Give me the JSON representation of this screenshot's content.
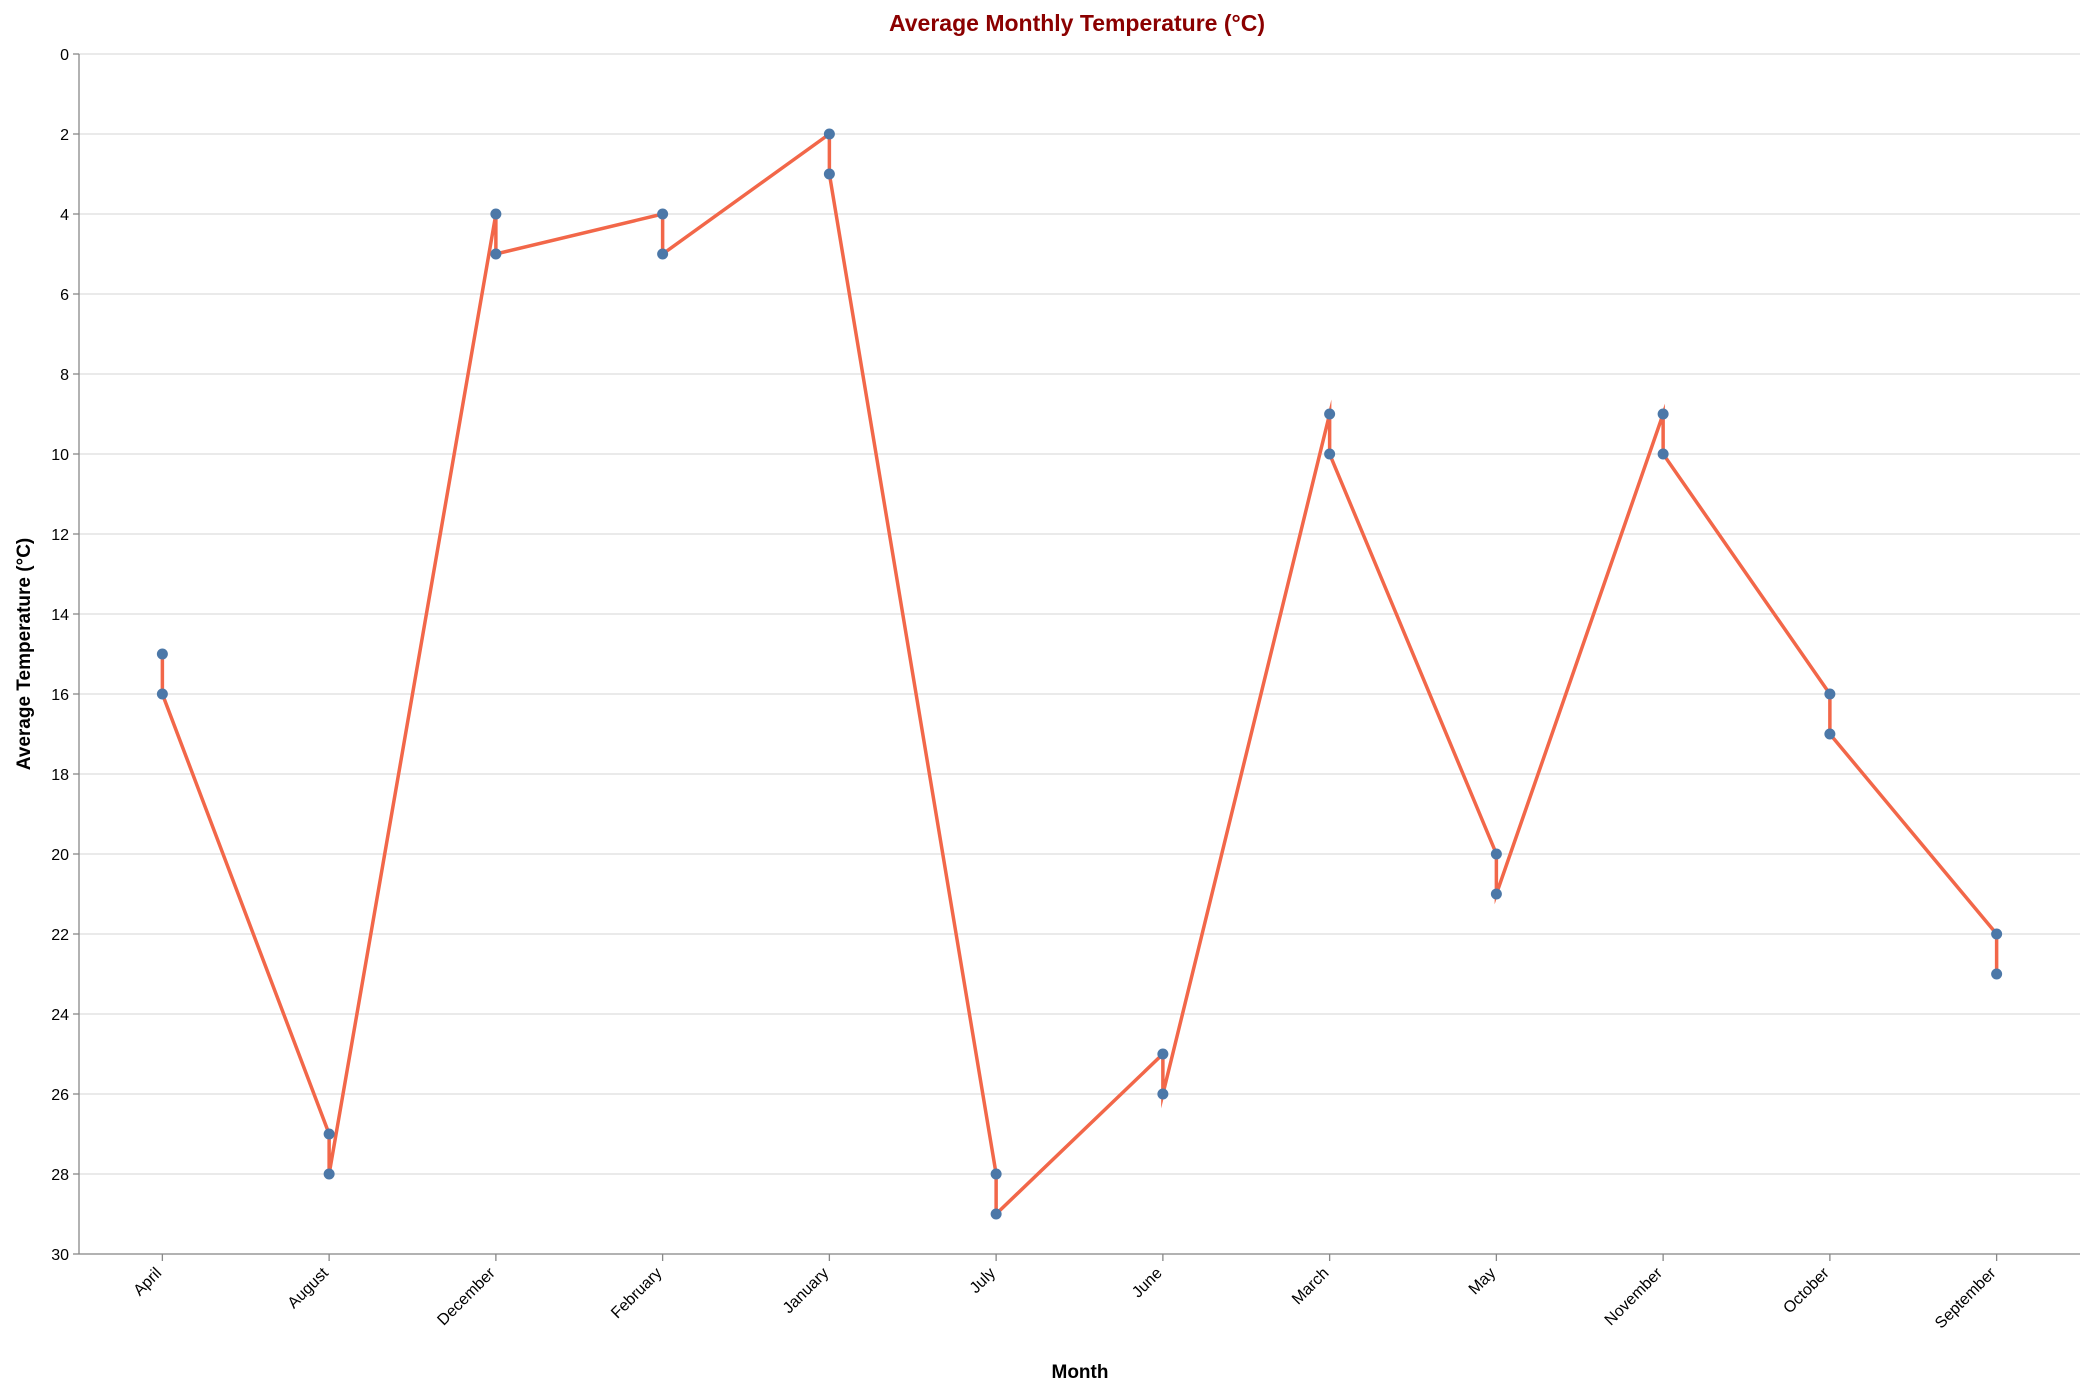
{
  "chart_data": {
    "type": "line",
    "title": "Average Monthly Temperature (°C)",
    "xlabel": "Month",
    "ylabel": "Average Temperature (°C)",
    "categories": [
      "April",
      "August",
      "December",
      "February",
      "January",
      "July",
      "June",
      "March",
      "May",
      "November",
      "October",
      "September"
    ],
    "points": [
      {
        "month": "April",
        "value": 15
      },
      {
        "month": "April",
        "value": 16
      },
      {
        "month": "August",
        "value": 27
      },
      {
        "month": "August",
        "value": 28
      },
      {
        "month": "December",
        "value": 4
      },
      {
        "month": "December",
        "value": 5
      },
      {
        "month": "February",
        "value": 4
      },
      {
        "month": "February",
        "value": 5
      },
      {
        "month": "January",
        "value": 2
      },
      {
        "month": "January",
        "value": 3
      },
      {
        "month": "July",
        "value": 28
      },
      {
        "month": "July",
        "value": 29
      },
      {
        "month": "June",
        "value": 25
      },
      {
        "month": "June",
        "value": 26
      },
      {
        "month": "March",
        "value": 9
      },
      {
        "month": "March",
        "value": 10
      },
      {
        "month": "May",
        "value": 20
      },
      {
        "month": "May",
        "value": 21
      },
      {
        "month": "November",
        "value": 9
      },
      {
        "month": "November",
        "value": 10
      },
      {
        "month": "October",
        "value": 16
      },
      {
        "month": "October",
        "value": 17
      },
      {
        "month": "September",
        "value": 22
      },
      {
        "month": "September",
        "value": 23
      }
    ],
    "ylim": [
      0,
      30
    ],
    "y_reversed": true,
    "yticks": [
      0,
      2,
      4,
      6,
      8,
      10,
      12,
      14,
      16,
      18,
      20,
      22,
      24,
      26,
      28,
      30
    ],
    "grid": true,
    "colors": {
      "line": "#f26749",
      "point": "#4c78a8",
      "title": "#8b0000"
    }
  }
}
